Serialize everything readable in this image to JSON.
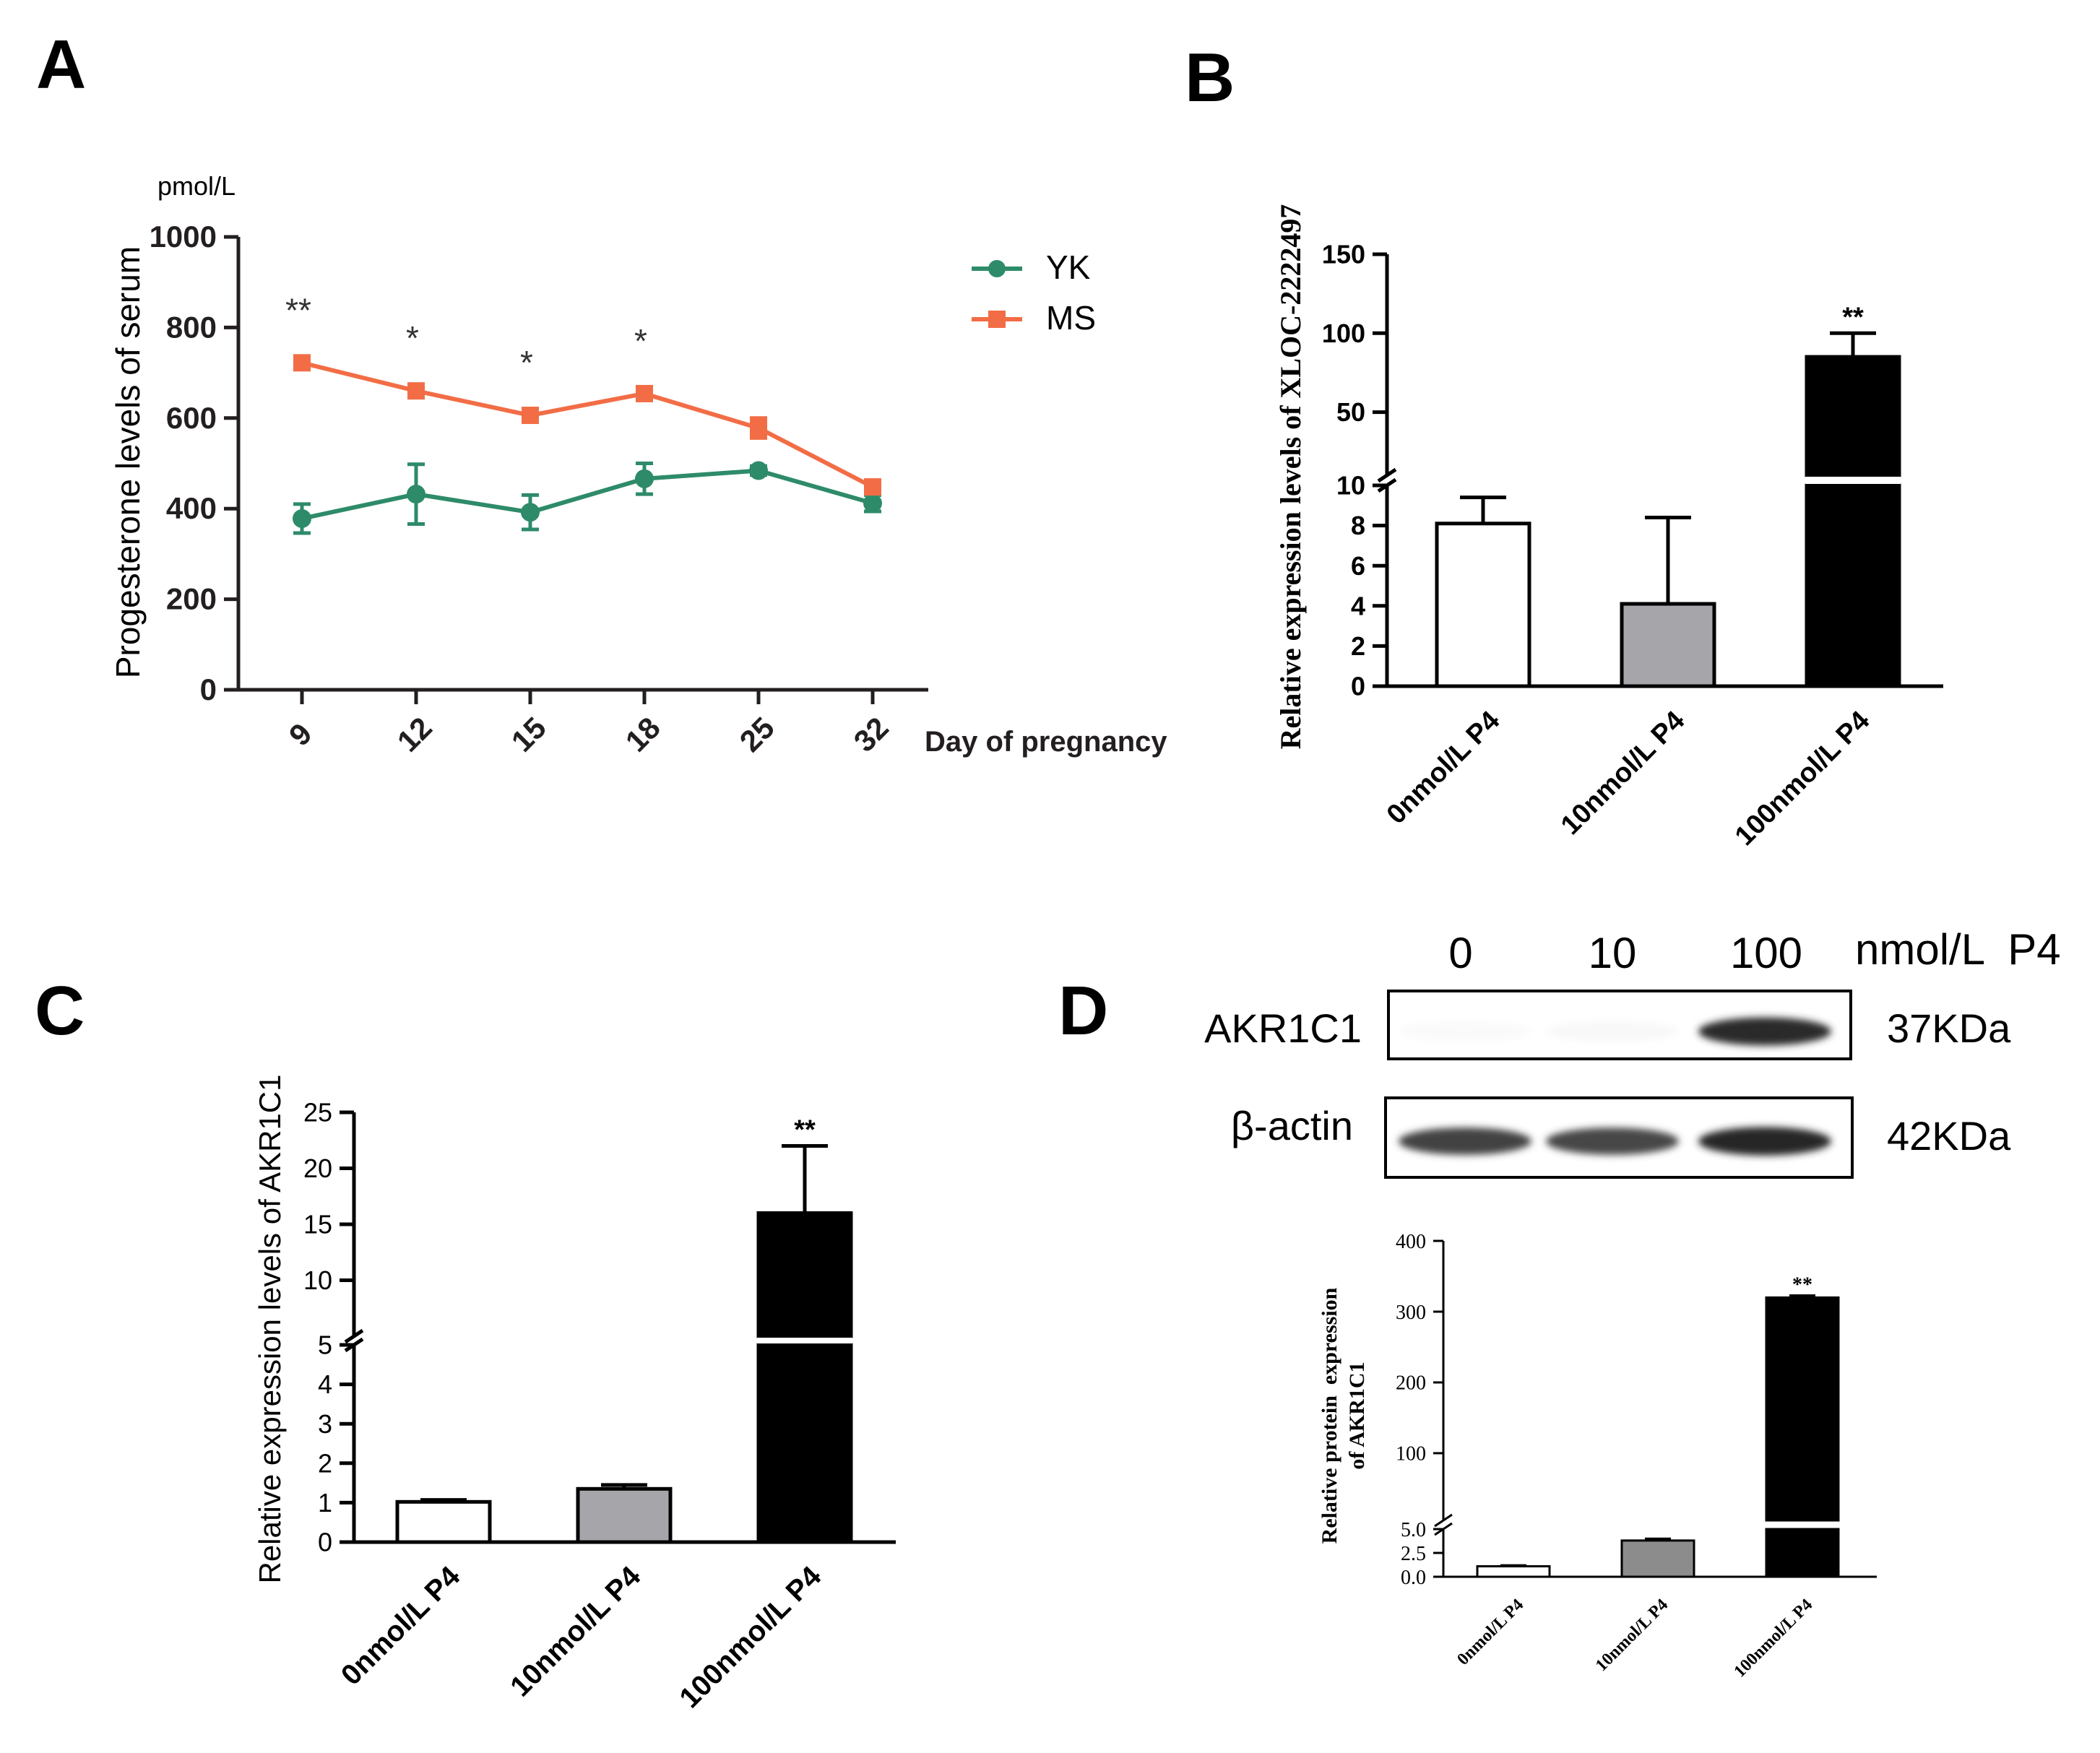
{
  "panel_labels": {
    "a": "A",
    "b": "B",
    "c": "C",
    "d": "D"
  },
  "colors": {
    "yk": "#2e8b69",
    "ms": "#f26d46",
    "axis": "#231f20",
    "gray_bar": "#a6a6aa",
    "dark_gray_bar": "#8c8c8c",
    "black_bar": "#000000"
  },
  "chart_data": [
    {
      "panel": "A",
      "type": "line",
      "title": "",
      "unit": "pmol/L",
      "ylabel": "Progesterone levels of serum",
      "xlabel": "Day of pregnancy",
      "categories": [
        "9",
        "12",
        "15",
        "18",
        "25",
        "32"
      ],
      "ylim": [
        0,
        1000
      ],
      "yticks": [
        "0",
        "200",
        "400",
        "600",
        "800",
        "1000"
      ],
      "series": [
        {
          "name": "YK",
          "color": "#2e8b69",
          "marker": "circle",
          "values": [
            378,
            432,
            392,
            466,
            484,
            412
          ],
          "errors": [
            32,
            66,
            38,
            34,
            10,
            18
          ]
        },
        {
          "name": "MS",
          "color": "#f26d46",
          "marker": "square",
          "values": [
            722,
            660,
            606,
            654,
            578,
            448
          ],
          "errors": [
            8,
            8,
            8,
            8,
            22,
            6
          ]
        }
      ],
      "annotations": [
        "**",
        "*",
        "*",
        "*",
        "",
        ""
      ],
      "legend": "top-right"
    },
    {
      "panel": "B",
      "type": "bar",
      "ylabel": "Relative expression levels of XLOC-2222497",
      "categories": [
        "0nmol/L P4",
        "10nmol/L P4",
        "100nmol/L P4"
      ],
      "values": [
        8.1,
        4.1,
        85
      ],
      "errors": [
        1.3,
        4.3,
        15
      ],
      "fills": [
        "#ffffff",
        "#a6a6aa",
        "#000000"
      ],
      "annotations": [
        "",
        "",
        "**"
      ],
      "broken_axis": true,
      "lower_range": [
        0,
        10
      ],
      "upper_range": [
        10,
        150
      ],
      "yticks_lower": [
        "0",
        "2",
        "4",
        "6",
        "8",
        "10"
      ],
      "yticks_upper": [
        "50",
        "100",
        "150"
      ]
    },
    {
      "panel": "C",
      "type": "bar",
      "ylabel": "Relative expression levels of AKR1C1",
      "categories": [
        "0nmol/L P4",
        "10nmol/L P4",
        "100nmol/L P4"
      ],
      "values": [
        1.02,
        1.35,
        16
      ],
      "errors": [
        0.05,
        0.1,
        6
      ],
      "fills": [
        "#ffffff",
        "#a6a6aa",
        "#000000"
      ],
      "annotations": [
        "",
        "",
        "**"
      ],
      "broken_axis": true,
      "lower_range": [
        0,
        5
      ],
      "upper_range": [
        5,
        25
      ],
      "yticks_lower": [
        "0",
        "1",
        "2",
        "3",
        "4",
        "5"
      ],
      "yticks_upper": [
        "10",
        "15",
        "20",
        "25"
      ]
    },
    {
      "panel": "D",
      "type": "bar",
      "ylabel_lines": [
        "Relative protein  expression",
        "of AKR1C1"
      ],
      "categories": [
        "0nmol/L P4",
        "10nmol/L P4",
        "100nmol/L P4"
      ],
      "values": [
        1.1,
        3.8,
        320
      ],
      "errors": [
        0.1,
        0.2,
        3
      ],
      "fills": [
        "#ffffff",
        "#8c8c8c",
        "#000000"
      ],
      "annotations": [
        "",
        "",
        "**"
      ],
      "broken_axis": true,
      "lower_range": [
        0,
        5
      ],
      "upper_range": [
        5,
        400
      ],
      "yticks_lower": [
        "0.0",
        "2.5",
        "5.0"
      ],
      "yticks_upper": [
        "100",
        "200",
        "300",
        "400"
      ]
    }
  ],
  "western_blot": {
    "lane_labels": [
      "0",
      "10",
      "100"
    ],
    "unit_label": "nmol/L  P4",
    "rows": [
      {
        "protein": "AKR1C1",
        "size": "37KDa",
        "intensities": [
          0.02,
          0.03,
          0.92
        ]
      },
      {
        "protein": "β-actin",
        "size": "42KDa",
        "intensities": [
          0.82,
          0.8,
          0.95
        ]
      }
    ]
  }
}
